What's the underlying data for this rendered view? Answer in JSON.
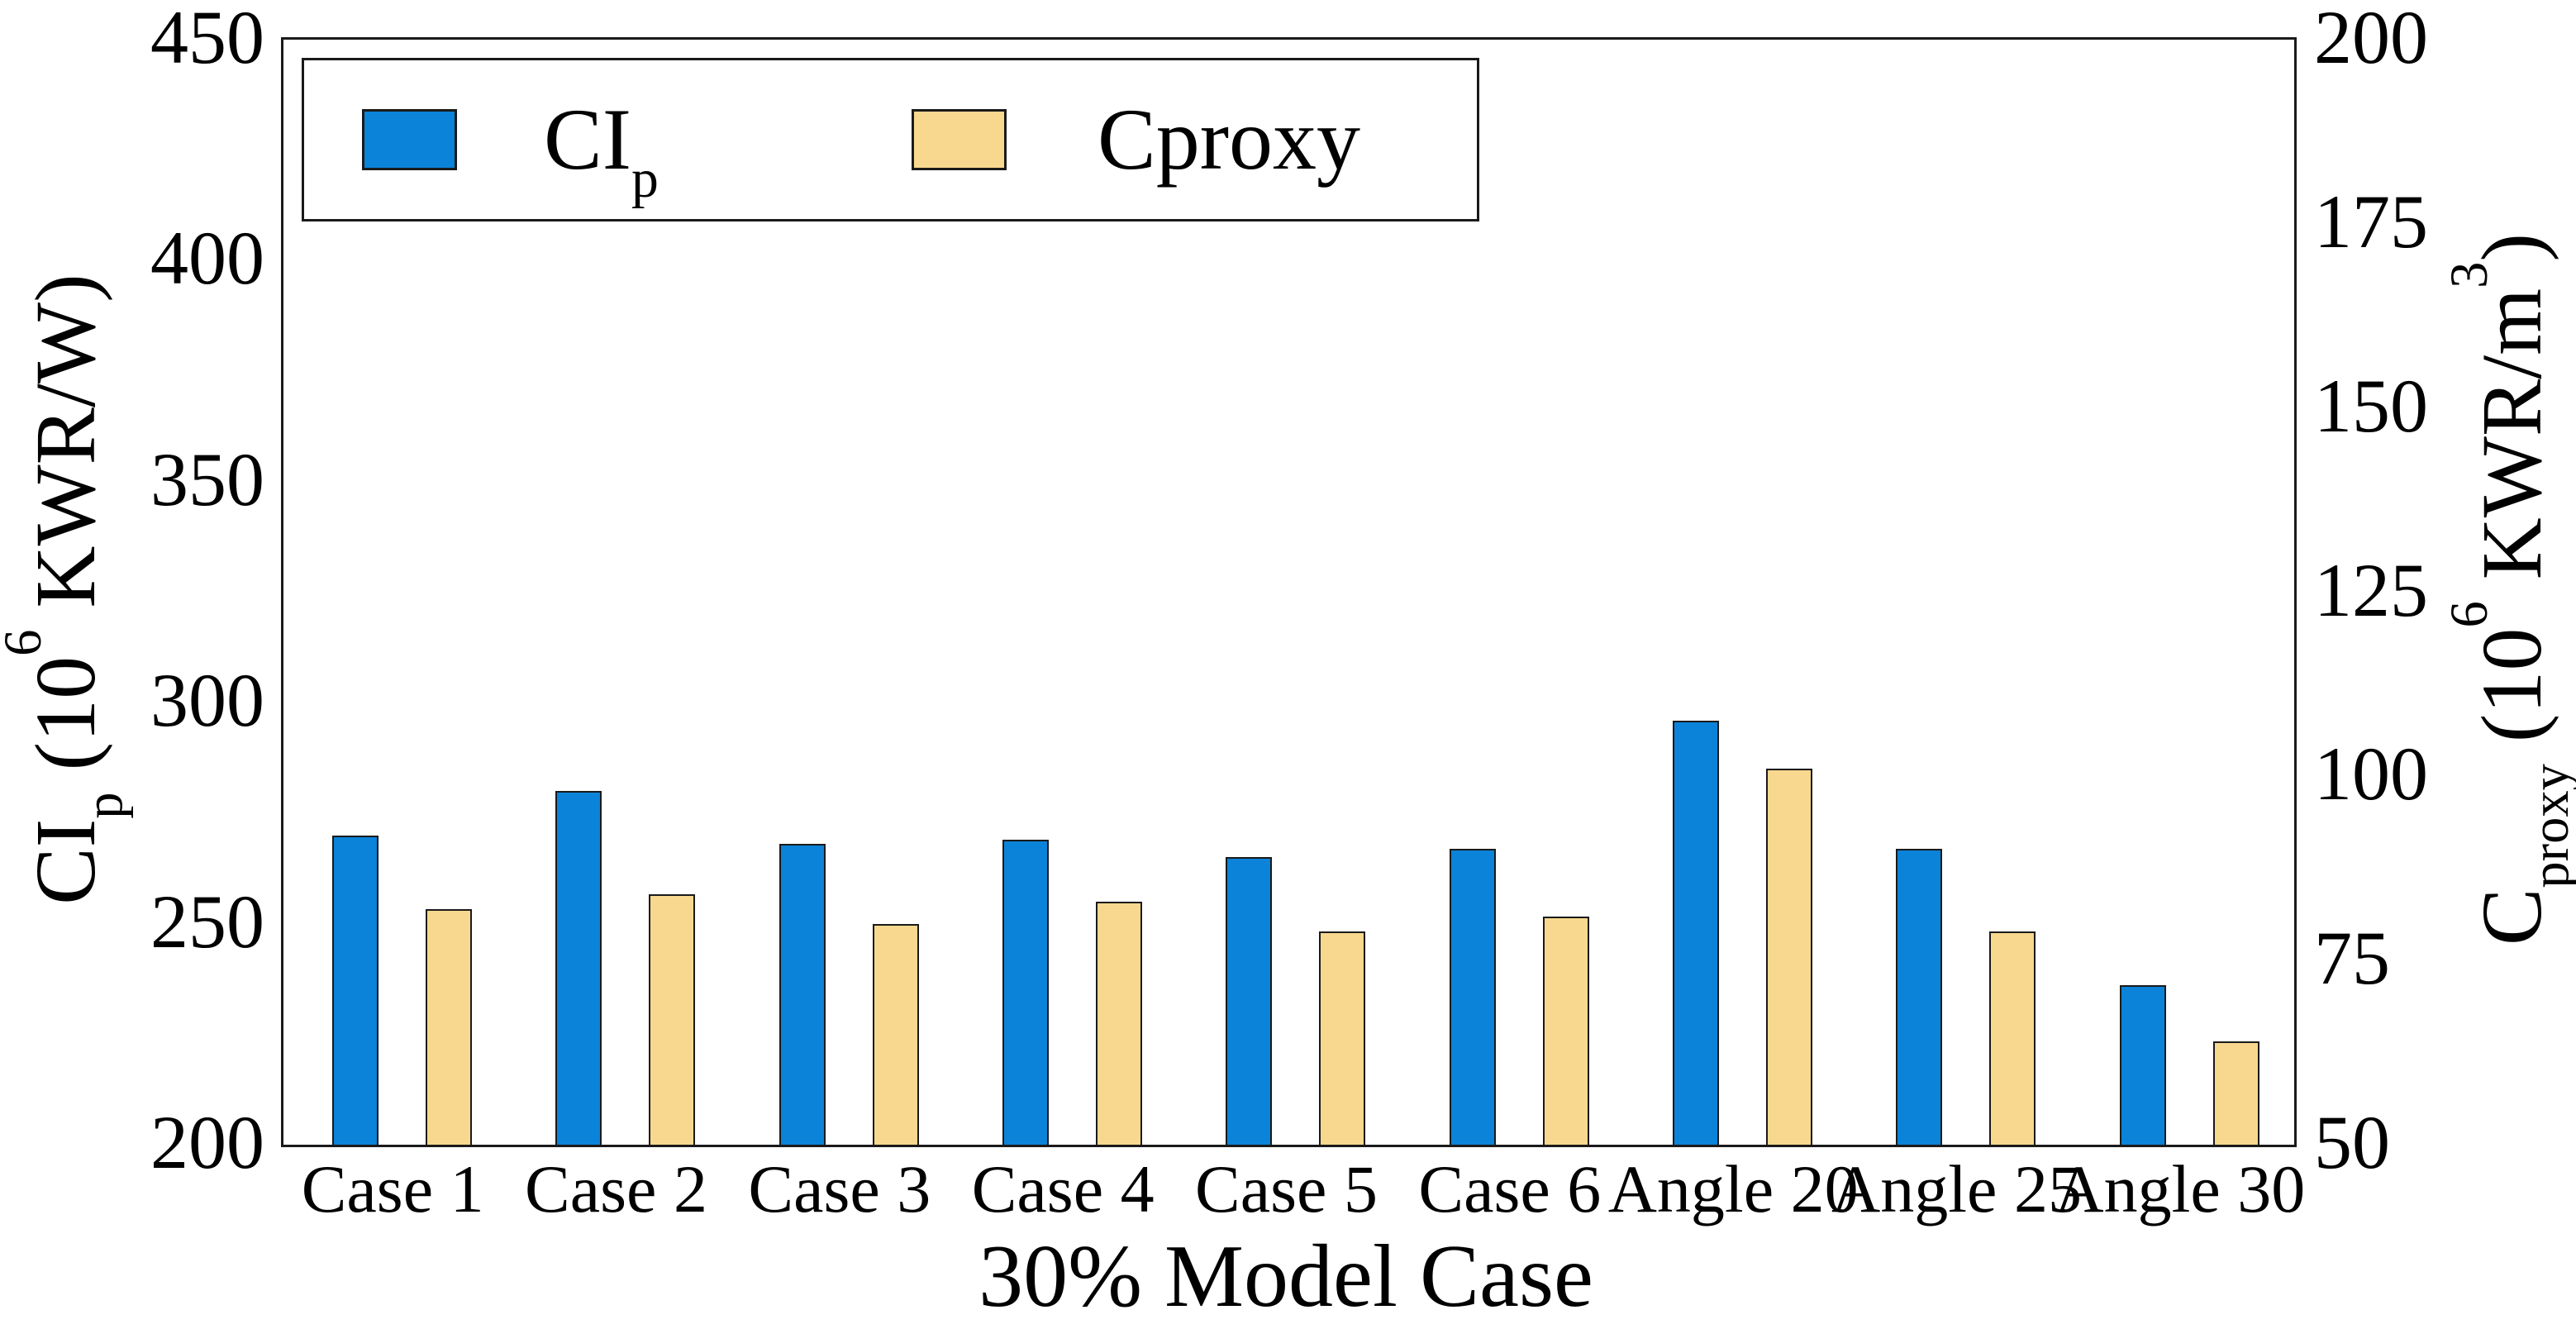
{
  "figure": {
    "background": "#ffffff",
    "xlabel": "30% Model Case",
    "axis_color": "#1a1a1a",
    "left_axis": {
      "label": {
        "base": "CI",
        "sub": "p",
        "open": " (10",
        "sup": "6",
        "close": " KWR/W)"
      },
      "ticks": [
        "450",
        "400",
        "350",
        "300",
        "250",
        "200"
      ],
      "tick_values": [
        450,
        400,
        350,
        300,
        250,
        200
      ],
      "min": 200,
      "max": 450
    },
    "right_axis": {
      "label": {
        "base": "C",
        "sub": "proxy",
        "open": " (10",
        "sup": "6",
        "mid": " KWR/m",
        "sup2": "3",
        "close": ")"
      },
      "ticks": [
        "200",
        "175",
        "150",
        "125",
        "100",
        "75",
        "50"
      ],
      "tick_values": [
        200,
        175,
        150,
        125,
        100,
        75,
        50
      ],
      "min": 50,
      "max": 200
    },
    "legend": {
      "items": [
        {
          "base": "CI",
          "sub": "p",
          "color": "#0b83d9"
        },
        {
          "base": "Cproxy",
          "sub": "",
          "color": "#f8d88e"
        }
      ]
    }
  },
  "chart_data": {
    "type": "bar",
    "title": "",
    "categories": [
      "Case 1",
      "Case 2",
      "Case 3",
      "Case 4",
      "Case 5",
      "Case 6",
      "Angle 20",
      "Angle 25",
      "Angle 30"
    ],
    "series": [
      {
        "name": "CIp",
        "axis": "left",
        "color": "#0b83d9",
        "edge_color": "#1a1a1a",
        "values": [
          270,
          280,
          268,
          269,
          265,
          267,
          296,
          267,
          236
        ]
      },
      {
        "name": "Cproxy",
        "axis": "right",
        "color": "#f8d88e",
        "edge_color": "#1a1a1a",
        "values": [
          82,
          84,
          80,
          83,
          79,
          81,
          101,
          79,
          64
        ]
      }
    ],
    "xlabel": "30% Model Case",
    "ylabel_left": "CIp (10^6 KWR/W)",
    "ylabel_right": "Cproxy (10^6 KWR/m^3)",
    "ylim_left": [
      200,
      450
    ],
    "ylim_right": [
      50,
      200
    ],
    "grid": false,
    "legend_position": "upper-left-inside"
  }
}
